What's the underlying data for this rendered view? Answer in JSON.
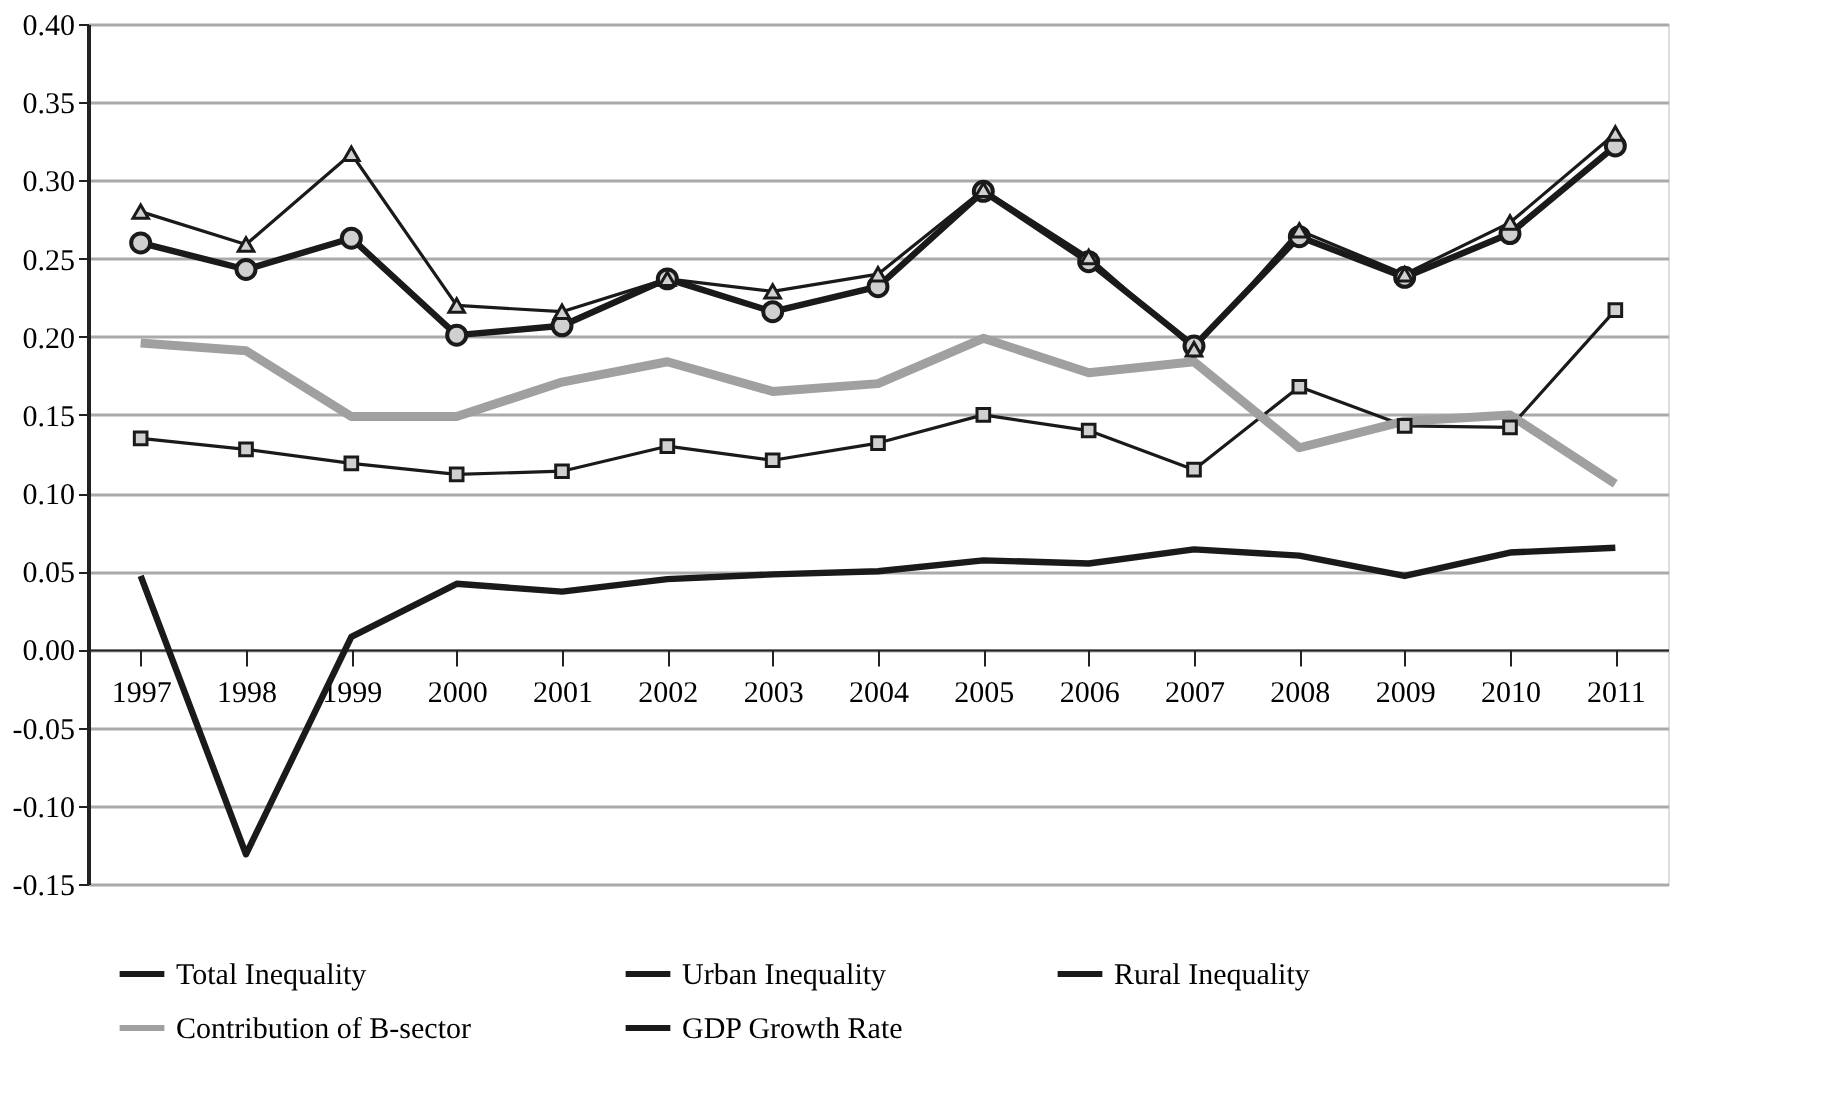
{
  "chart_data": {
    "type": "line",
    "categories": [
      "1997",
      "1998",
      "1999",
      "2000",
      "2001",
      "2002",
      "2003",
      "2004",
      "2005",
      "2006",
      "2007",
      "2008",
      "2009",
      "2010",
      "2011"
    ],
    "series": [
      {
        "name": "Total Inequality",
        "color": "#1a1a1a",
        "marker": "circle",
        "values": [
          0.26,
          0.243,
          0.263,
          0.201,
          0.207,
          0.237,
          0.216,
          0.232,
          0.293,
          0.248,
          0.194,
          0.264,
          0.238,
          0.266,
          0.322
        ]
      },
      {
        "name": "Urban Inequality",
        "color": "#1a1a1a",
        "marker": "triangle",
        "values": [
          0.28,
          0.259,
          0.317,
          0.22,
          0.216,
          0.237,
          0.229,
          0.24,
          0.294,
          0.251,
          0.192,
          0.268,
          0.24,
          0.273,
          0.33
        ]
      },
      {
        "name": "Rural Inequality",
        "color": "#1a1a1a",
        "marker": "square",
        "values": [
          0.135,
          0.128,
          0.119,
          0.112,
          0.114,
          0.13,
          0.121,
          0.132,
          0.15,
          0.14,
          0.115,
          0.168,
          0.143,
          0.142,
          0.217
        ]
      },
      {
        "name": "Contribution of B-sector",
        "color": "#a0a0a0",
        "marker": "none",
        "values": [
          0.196,
          0.191,
          0.149,
          0.149,
          0.171,
          0.184,
          0.165,
          0.17,
          0.199,
          0.177,
          0.184,
          0.129,
          0.146,
          0.15,
          0.106
        ]
      },
      {
        "name": "GDP Growth Rate",
        "color": "#1a1a1a",
        "marker": "none",
        "values": [
          0.047,
          -0.131,
          0.008,
          0.042,
          0.037,
          0.045,
          0.048,
          0.05,
          0.057,
          0.055,
          0.064,
          0.06,
          0.047,
          0.062,
          0.065
        ]
      }
    ],
    "ylim": [
      -0.15,
      0.4
    ],
    "yticks": [
      {
        "value": -0.15,
        "label": "-0.15"
      },
      {
        "value": -0.1,
        "label": "-0.10"
      },
      {
        "value": -0.05,
        "label": "-0.05"
      },
      {
        "value": 0,
        "label": "0.00"
      },
      {
        "value": 0.05,
        "label": "0.05"
      },
      {
        "value": 0.1,
        "label": "0.10"
      },
      {
        "value": 0.15,
        "label": "0.15"
      },
      {
        "value": 0.2,
        "label": "0.20"
      },
      {
        "value": 0.25,
        "label": "0.25"
      },
      {
        "value": 0.3,
        "label": "0.30"
      },
      {
        "value": 0.35,
        "label": "0.35"
      },
      {
        "value": 0.4,
        "label": "0.40"
      }
    ],
    "grid": "y",
    "legend": "bottom",
    "line_style": "solid"
  }
}
